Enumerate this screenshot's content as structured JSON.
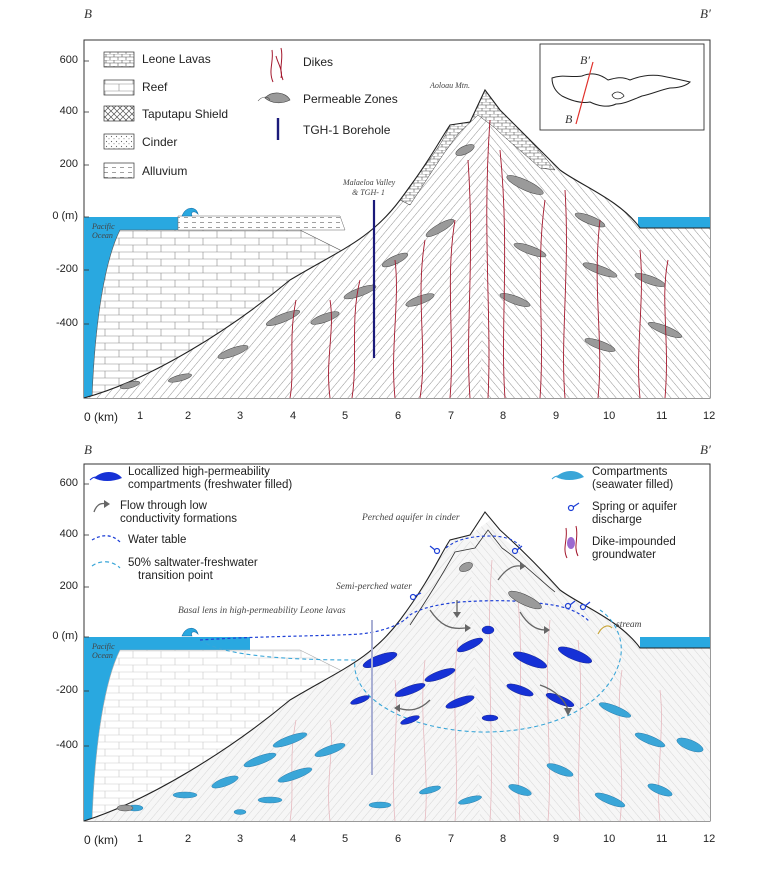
{
  "top": {
    "corner_left": "B",
    "corner_right": "B′",
    "y_ticks": [
      "600",
      "400",
      "200",
      "0 (m)",
      "-200",
      "-400"
    ],
    "x_unit": "0 (km)",
    "x_ticks": [
      "1",
      "2",
      "3",
      "4",
      "5",
      "6",
      "7",
      "8",
      "9",
      "10",
      "11",
      "12"
    ],
    "legend": {
      "leone": "Leone Lavas",
      "reef": "Reef",
      "taputapu": "Taputapu Shield",
      "cinder": "Cinder",
      "alluvium": "Alluvium",
      "dikes": "Dikes",
      "permeable": "Permeable Zones",
      "borehole": "TGH-1 Borehole"
    },
    "annotations": {
      "aoloau": "Aoloau Mtn.",
      "malaeloa_1": "Malaeloa Valley",
      "malaeloa_2": "& TGH- 1",
      "pacific_1": "Pacific",
      "pacific_2": "Ocean"
    },
    "inset": {
      "label_top": "B′",
      "label_bottom": "B"
    }
  },
  "bottom": {
    "corner_left": "B",
    "corner_right": "B′",
    "y_ticks": [
      "600",
      "400",
      "200",
      "0 (m)",
      "-200",
      "-400"
    ],
    "x_unit": "0 (km)",
    "x_ticks": [
      "1",
      "2",
      "3",
      "4",
      "5",
      "6",
      "7",
      "8",
      "9",
      "10",
      "11",
      "12"
    ],
    "legend": {
      "localized_1": "Locallized high-permeability",
      "localized_2": "compartments (freshwater filled)",
      "flow_1": "Flow through low",
      "flow_2": "conductivity formations",
      "water_table": "Water table",
      "transition_1": "50% saltwater-freshwater",
      "transition_2": "transition point",
      "compartments_1": "Compartments",
      "compartments_2": "(seawater filled)",
      "spring_1": "Spring or aquifer",
      "spring_2": "discharge",
      "dike_1": "Dike-impounded",
      "dike_2": "groundwater"
    },
    "annotations": {
      "perched": "Perched aquifer in cinder",
      "semi_perched": "Semi-perched water",
      "basal": "Basal lens in high-permeability Leone lavas",
      "stream": "stream",
      "pacific_1": "Pacific",
      "pacific_2": "Ocean"
    }
  },
  "colors": {
    "ocean": "#29a8e0",
    "freshwater": "#1631d6",
    "seawater_comp": "#3aa6d8",
    "dike": "#a3172c",
    "borehole": "#1b1a7a",
    "water_table": "#1d3fd6",
    "transition": "#3aa6d8"
  }
}
